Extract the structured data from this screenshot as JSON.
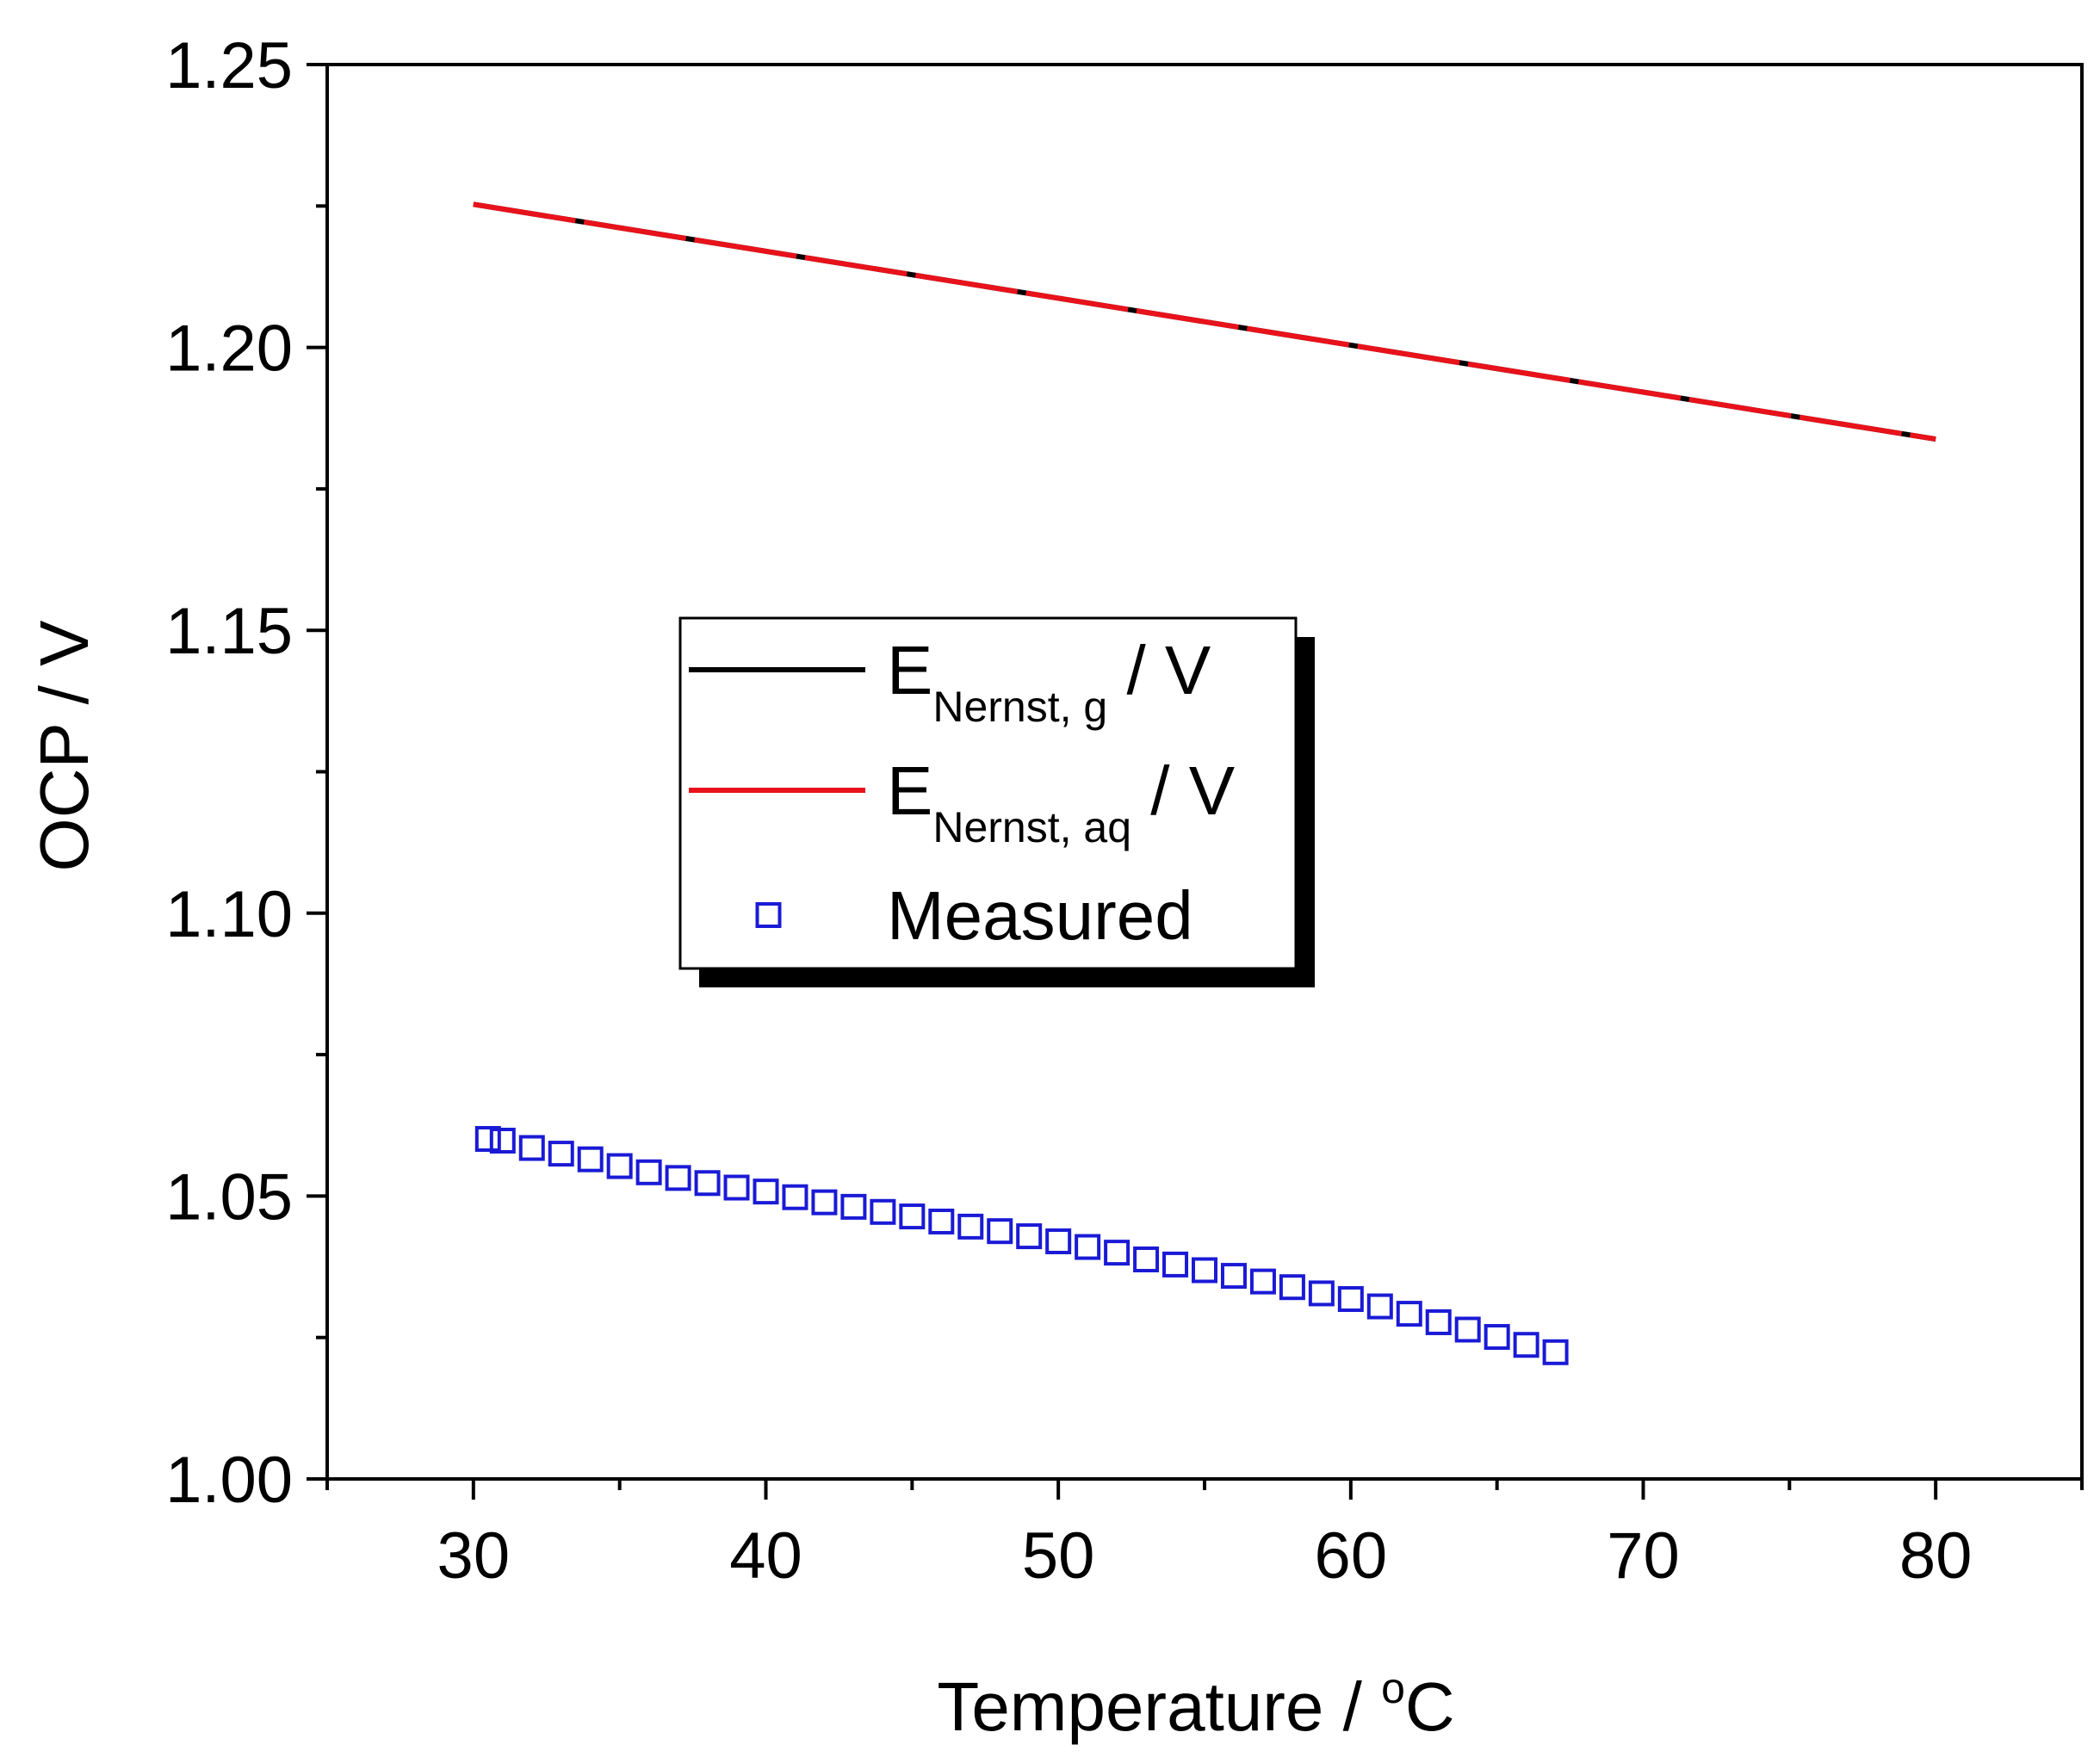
{
  "chart_data": {
    "type": "line",
    "title": "",
    "xlabel": {
      "text": "Temperature / ",
      "sup": "o",
      "unit": "C"
    },
    "ylabel": "OCP / V",
    "xlim": [
      25,
      85
    ],
    "ylim": [
      1.0,
      1.25
    ],
    "xticks": [
      30,
      40,
      50,
      60,
      70,
      80
    ],
    "xtick_labels": [
      "30",
      "40",
      "50",
      "60",
      "70",
      "80"
    ],
    "xminor_step": 5,
    "yticks": [
      1.0,
      1.05,
      1.1,
      1.15,
      1.2,
      1.25
    ],
    "ytick_labels": [
      "1.00",
      "1.05",
      "1.10",
      "1.15",
      "1.20",
      "1.25"
    ],
    "yminor_step": 0.025,
    "grid": false,
    "legend_position": "center-left",
    "series": [
      {
        "name": "E_Nernst,g / V",
        "label_main": "E",
        "label_sub": "Nernst, g",
        "label_tail": " / V",
        "style": "line",
        "color": "#000000",
        "x": [
          30,
          80
        ],
        "y": [
          1.2253,
          1.1838
        ]
      },
      {
        "name": "E_Nernst,aq / V",
        "label_main": "E",
        "label_sub": "Nernst, aq",
        "label_tail": " / V",
        "style": "line",
        "color": "#e8121b",
        "x": [
          30,
          80
        ],
        "y": [
          1.2253,
          1.1838
        ]
      },
      {
        "name": "Measured",
        "label_main": "Measured",
        "style": "open-square",
        "color": "#1a1ad6",
        "x": [
          30.5,
          31,
          32,
          33,
          34,
          35,
          36,
          37,
          38,
          39,
          40,
          41,
          42,
          43,
          44,
          45,
          46,
          47,
          48,
          49,
          50,
          51,
          52,
          53,
          54,
          55,
          56,
          57,
          58,
          59,
          60,
          61,
          62,
          63,
          64,
          65,
          66,
          67
        ],
        "y": [
          1.0601,
          1.0598,
          1.0585,
          1.0575,
          1.0565,
          1.0553,
          1.0542,
          1.0532,
          1.0523,
          1.0515,
          1.0508,
          1.0498,
          1.0489,
          1.0481,
          1.0472,
          1.0464,
          1.0455,
          1.0446,
          1.0438,
          1.0429,
          1.042,
          1.041,
          1.04,
          1.0388,
          1.0379,
          1.0369,
          1.0359,
          1.0349,
          1.0339,
          1.0328,
          1.0318,
          1.0305,
          1.0292,
          1.0277,
          1.0264,
          1.0251,
          1.0237,
          1.0224
        ]
      }
    ]
  }
}
